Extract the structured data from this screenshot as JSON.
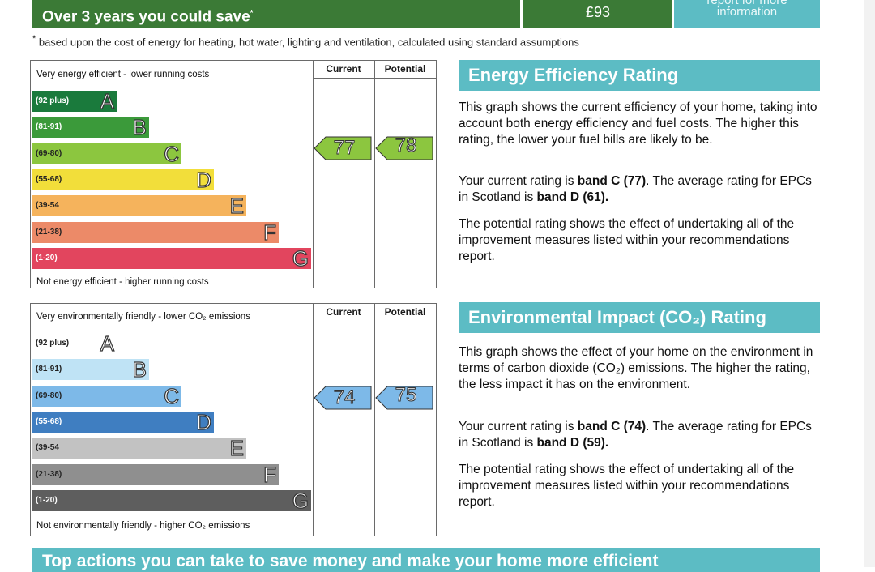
{
  "savings": {
    "label": "Over 3 years you could save",
    "marker": "*",
    "value": "£93",
    "info": "information",
    "info_top": "report for more",
    "footnote_marker": "*",
    "footnote": "based upon the cost of energy for heating, hot water, lighting and ventilation, calculated using standard assumptions"
  },
  "energy_chart": {
    "top_text": "Very energy efficient - lower running costs",
    "bottom_text": "Not energy efficient - higher running costs",
    "col_current": "Current",
    "col_potential": "Potential",
    "bands": [
      {
        "range": "(92 plus)",
        "letter": "A",
        "color": "#1a7a3c"
      },
      {
        "range": "(81-91)",
        "letter": "B",
        "color": "#3b9a3a"
      },
      {
        "range": "(69-80)",
        "letter": "C",
        "color": "#8cc63f"
      },
      {
        "range": "(55-68)",
        "letter": "D",
        "color": "#f2de3a"
      },
      {
        "range": "(39-54",
        "letter": "E",
        "color": "#f5b35c"
      },
      {
        "range": "(21-38)",
        "letter": "F",
        "color": "#ec8a68"
      },
      {
        "range": "(1-20)",
        "letter": "G",
        "color": "#e2455e"
      }
    ],
    "current": "77",
    "potential": "78",
    "arrow_color": "#8cc63f"
  },
  "env_chart": {
    "top_text": "Very environmentally friendly - lower CO₂ emissions",
    "bottom_text": "Not environmentally friendly - higher CO₂ emissions",
    "col_current": "Current",
    "col_potential": "Potential",
    "bands": [
      {
        "range": "(92 plus)",
        "letter": "A",
        "color": "#ffffff"
      },
      {
        "range": "(81-91)",
        "letter": "B",
        "color": "#bfe3f5"
      },
      {
        "range": "(69-80)",
        "letter": "C",
        "color": "#7db9e8"
      },
      {
        "range": "(55-68)",
        "letter": "D",
        "color": "#3f7ec1"
      },
      {
        "range": "(39-54",
        "letter": "E",
        "color": "#c2c2c2"
      },
      {
        "range": "(21-38)",
        "letter": "F",
        "color": "#8f8f8f"
      },
      {
        "range": "(1-20)",
        "letter": "G",
        "color": "#5e5e5e"
      }
    ],
    "current": "74",
    "potential": "75",
    "arrow_color": "#7db9e8"
  },
  "energy_text": {
    "heading": "Energy Efficiency Rating",
    "p1": "This graph shows the current efficiency of your home, taking into account both energy efficiency and fuel costs. The higher this rating, the lower your fuel bills are likely to be.",
    "p2_a": "Your current rating is ",
    "p2_b": "band C (77)",
    "p2_c": ". The average rating for EPCs in Scotland is ",
    "p2_d": "band D (61).",
    "p3": "The potential rating shows the effect of undertaking all of the improvement measures listed within your recommendations report."
  },
  "env_text": {
    "heading": "Environmental Impact (CO₂) Rating",
    "p1": "This graph shows the effect of your home on the environment in terms of carbon dioxide (CO₂) emissions. The higher the rating, the less impact it has on the environment.",
    "p2_a": "Your current rating is ",
    "p2_b": "band C (74)",
    "p2_c": ". The average rating for EPCs in Scotland is ",
    "p2_d": "band D (59).",
    "p3": "The potential rating shows the effect of undertaking all of the improvement measures listed within your recommendations report."
  },
  "bottom_banner": "Top actions you can take to save money and make your home more efficient"
}
